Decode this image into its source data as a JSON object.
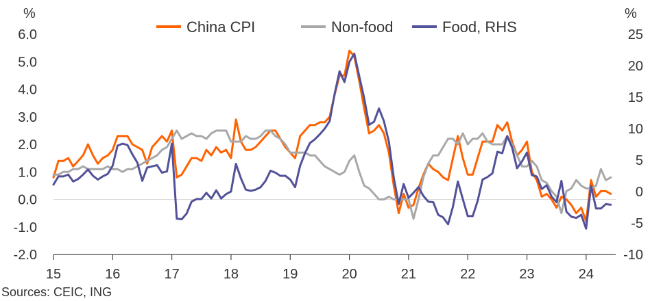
{
  "chart_data": {
    "type": "line",
    "left_axis": {
      "unit": "%",
      "ylim": [
        -2,
        6
      ],
      "ticks": [
        "6.0",
        "5.0",
        "4.0",
        "3.0",
        "2.0",
        "1.0",
        "0.0",
        "-1.0",
        "-2.0"
      ],
      "tick_values": [
        6,
        5,
        4,
        3,
        2,
        1,
        0,
        -1,
        -2
      ]
    },
    "right_axis": {
      "unit": "%",
      "ylim": [
        -10,
        25
      ],
      "ticks": [
        "25",
        "20",
        "15",
        "10",
        "5",
        "0",
        "-5",
        "-10"
      ],
      "tick_values": [
        25,
        20,
        15,
        10,
        5,
        0,
        -5,
        -10
      ]
    },
    "x_axis": {
      "ticks": [
        "15",
        "16",
        "17",
        "18",
        "19",
        "20",
        "21",
        "22",
        "23",
        "24"
      ],
      "tick_values": [
        2015,
        2016,
        2017,
        2018,
        2019,
        2020,
        2021,
        2022,
        2023,
        2024
      ],
      "xlim": [
        2015,
        2024.5
      ]
    },
    "legend_position": "top-center",
    "series": [
      {
        "name": "China CPI",
        "axis": "left",
        "color": "#FF6200",
        "x": [
          2015,
          2015.083,
          2015.167,
          2015.25,
          2015.333,
          2015.417,
          2015.5,
          2015.583,
          2015.667,
          2015.75,
          2015.833,
          2015.917,
          2016,
          2016.083,
          2016.167,
          2016.25,
          2016.333,
          2016.417,
          2016.5,
          2016.583,
          2016.667,
          2016.75,
          2016.833,
          2016.917,
          2017,
          2017.083,
          2017.167,
          2017.25,
          2017.333,
          2017.417,
          2017.5,
          2017.583,
          2017.667,
          2017.75,
          2017.833,
          2017.917,
          2018,
          2018.083,
          2018.167,
          2018.25,
          2018.333,
          2018.417,
          2018.5,
          2018.583,
          2018.667,
          2018.75,
          2018.833,
          2018.917,
          2019,
          2019.083,
          2019.167,
          2019.25,
          2019.333,
          2019.417,
          2019.5,
          2019.583,
          2019.667,
          2019.75,
          2019.833,
          2019.917,
          2020,
          2020.083,
          2020.167,
          2020.25,
          2020.333,
          2020.417,
          2020.5,
          2020.583,
          2020.667,
          2020.75,
          2020.833,
          2020.917,
          2021,
          2021.083,
          2021.167,
          2021.25,
          2021.333,
          2021.417,
          2021.5,
          2021.583,
          2021.667,
          2021.75,
          2021.833,
          2021.917,
          2022,
          2022.083,
          2022.167,
          2022.25,
          2022.333,
          2022.417,
          2022.5,
          2022.583,
          2022.667,
          2022.75,
          2022.833,
          2022.917,
          2023,
          2023.083,
          2023.167,
          2023.25,
          2023.333,
          2023.417,
          2023.5,
          2023.583,
          2023.667,
          2023.75,
          2023.833,
          2023.917,
          2024,
          2024.083,
          2024.167,
          2024.25,
          2024.333,
          2024.417
        ],
        "values": [
          0.8,
          1.4,
          1.4,
          1.5,
          1.2,
          1.4,
          1.6,
          2.0,
          1.6,
          1.3,
          1.5,
          1.6,
          1.8,
          2.3,
          2.3,
          2.3,
          2.0,
          1.9,
          1.8,
          1.3,
          1.9,
          2.1,
          2.3,
          2.1,
          2.5,
          0.8,
          0.9,
          1.2,
          1.5,
          1.5,
          1.4,
          1.8,
          1.6,
          1.9,
          1.7,
          1.8,
          1.5,
          2.9,
          2.1,
          1.8,
          1.8,
          1.9,
          2.1,
          2.3,
          2.5,
          2.5,
          2.2,
          1.9,
          1.7,
          1.5,
          2.3,
          2.5,
          2.7,
          2.7,
          2.8,
          2.8,
          3.0,
          3.8,
          4.5,
          4.5,
          5.4,
          5.2,
          4.3,
          3.3,
          2.4,
          2.5,
          2.7,
          2.4,
          1.7,
          0.5,
          -0.5,
          0.2,
          -0.3,
          -0.2,
          0.4,
          0.9,
          1.3,
          1.1,
          1.0,
          0.8,
          0.7,
          1.5,
          2.3,
          1.5,
          0.9,
          0.9,
          1.5,
          2.1,
          2.1,
          2.1,
          2.7,
          2.5,
          2.8,
          2.1,
          1.6,
          1.8,
          2.1,
          1.0,
          0.7,
          0.1,
          0.2,
          0.0,
          -0.3,
          0.1,
          0.0,
          -0.2,
          -0.5,
          -0.3,
          -0.8,
          0.7,
          0.1,
          0.3,
          0.3,
          0.2
        ],
        "values_visible_note": ""
      },
      {
        "name": "Non-food",
        "axis": "left",
        "color": "#A8A8A8",
        "x": [
          2015,
          2015.083,
          2015.167,
          2015.25,
          2015.333,
          2015.417,
          2015.5,
          2015.583,
          2015.667,
          2015.75,
          2015.833,
          2015.917,
          2016,
          2016.083,
          2016.167,
          2016.25,
          2016.333,
          2016.417,
          2016.5,
          2016.583,
          2016.667,
          2016.75,
          2016.833,
          2016.917,
          2017,
          2017.083,
          2017.167,
          2017.25,
          2017.333,
          2017.417,
          2017.5,
          2017.583,
          2017.667,
          2017.75,
          2017.833,
          2017.917,
          2018,
          2018.083,
          2018.167,
          2018.25,
          2018.333,
          2018.417,
          2018.5,
          2018.583,
          2018.667,
          2018.75,
          2018.833,
          2018.917,
          2019,
          2019.083,
          2019.167,
          2019.25,
          2019.333,
          2019.417,
          2019.5,
          2019.583,
          2019.667,
          2019.75,
          2019.833,
          2019.917,
          2020,
          2020.083,
          2020.167,
          2020.25,
          2020.333,
          2020.417,
          2020.5,
          2020.583,
          2020.667,
          2020.75,
          2020.833,
          2020.917,
          2021,
          2021.083,
          2021.167,
          2021.25,
          2021.333,
          2021.417,
          2021.5,
          2021.583,
          2021.667,
          2021.75,
          2021.833,
          2021.917,
          2022,
          2022.083,
          2022.167,
          2022.25,
          2022.333,
          2022.417,
          2022.5,
          2022.583,
          2022.667,
          2022.75,
          2022.833,
          2022.917,
          2023,
          2023.083,
          2023.167,
          2023.25,
          2023.333,
          2023.417,
          2023.5,
          2023.583,
          2023.667,
          2023.75,
          2023.833,
          2023.917,
          2024,
          2024.083,
          2024.167,
          2024.25,
          2024.333,
          2024.417
        ],
        "values": [
          0.9,
          0.9,
          1.0,
          1.0,
          1.1,
          1.1,
          1.2,
          1.1,
          1.1,
          1.1,
          1.1,
          1.2,
          1.1,
          1.1,
          1.0,
          1.1,
          1.1,
          1.2,
          1.3,
          1.4,
          1.5,
          1.6,
          1.8,
          1.9,
          2.2,
          2.5,
          2.2,
          2.3,
          2.4,
          2.3,
          2.3,
          2.2,
          2.4,
          2.5,
          2.5,
          2.5,
          2.1,
          2.1,
          2.1,
          2.3,
          2.2,
          2.2,
          2.3,
          2.5,
          2.5,
          2.3,
          2.2,
          2.0,
          1.7,
          1.7,
          1.7,
          1.7,
          1.6,
          1.6,
          1.4,
          1.2,
          1.1,
          1.0,
          0.9,
          1.0,
          1.4,
          1.6,
          1.0,
          0.5,
          0.4,
          0.2,
          0.0,
          0.0,
          0.1,
          0.0,
          0.0,
          0.0,
          0.0,
          -0.7,
          0.0,
          0.8,
          1.3,
          1.6,
          1.6,
          1.9,
          2.2,
          2.2,
          2.0,
          2.4,
          2.0,
          2.2,
          2.2,
          2.4,
          2.1,
          2.0,
          2.0,
          2.0,
          2.3,
          2.0,
          1.6,
          1.2,
          1.2,
          1.4,
          1.2,
          0.7,
          0.6,
          0.3,
          0.1,
          -0.5,
          0.3,
          0.4,
          0.7,
          0.5,
          0.4,
          0.4,
          0.5,
          1.1,
          0.7,
          0.8
        ],
        "values_visible_note": ""
      },
      {
        "name": "Food, RHS",
        "axis": "right",
        "color": "#525199",
        "x": [
          2015,
          2015.083,
          2015.167,
          2015.25,
          2015.333,
          2015.417,
          2015.5,
          2015.583,
          2015.667,
          2015.75,
          2015.833,
          2015.917,
          2016,
          2016.083,
          2016.167,
          2016.25,
          2016.333,
          2016.417,
          2016.5,
          2016.583,
          2016.667,
          2016.75,
          2016.833,
          2016.917,
          2017,
          2017.083,
          2017.167,
          2017.25,
          2017.333,
          2017.417,
          2017.5,
          2017.583,
          2017.667,
          2017.75,
          2017.833,
          2017.917,
          2018,
          2018.083,
          2018.167,
          2018.25,
          2018.333,
          2018.417,
          2018.5,
          2018.583,
          2018.667,
          2018.75,
          2018.833,
          2018.917,
          2019,
          2019.083,
          2019.167,
          2019.25,
          2019.333,
          2019.417,
          2019.5,
          2019.583,
          2019.667,
          2019.75,
          2019.833,
          2019.917,
          2020,
          2020.083,
          2020.167,
          2020.25,
          2020.333,
          2020.417,
          2020.5,
          2020.583,
          2020.667,
          2020.75,
          2020.833,
          2020.917,
          2021,
          2021.083,
          2021.167,
          2021.25,
          2021.333,
          2021.417,
          2021.5,
          2021.583,
          2021.667,
          2021.75,
          2021.833,
          2021.917,
          2022,
          2022.083,
          2022.167,
          2022.25,
          2022.333,
          2022.417,
          2022.5,
          2022.583,
          2022.667,
          2022.75,
          2022.833,
          2022.917,
          2023,
          2023.083,
          2023.167,
          2023.25,
          2023.333,
          2023.417,
          2023.5,
          2023.583,
          2023.667,
          2023.75,
          2023.833,
          2023.917,
          2024,
          2024.083,
          2024.167,
          2024.25,
          2024.333,
          2024.417
        ],
        "values": [
          1.1,
          2.4,
          2.4,
          2.7,
          1.6,
          2.0,
          2.7,
          3.5,
          2.5,
          1.9,
          2.4,
          2.8,
          4.1,
          7.3,
          7.6,
          7.4,
          5.9,
          4.6,
          1.7,
          3.8,
          4.0,
          4.2,
          3.0,
          3.2,
          7.6,
          -4.3,
          -4.4,
          -3.5,
          -1.6,
          -1.2,
          -1.2,
          -0.2,
          -1.1,
          0.2,
          -1.1,
          -0.4,
          0.0,
          4.4,
          2.1,
          0.3,
          0.1,
          0.3,
          0.7,
          1.7,
          3.3,
          3.0,
          2.5,
          2.5,
          1.9,
          0.7,
          4.1,
          6.1,
          7.7,
          8.3,
          9.1,
          10.0,
          11.2,
          15.5,
          19.1,
          17.4,
          20.6,
          21.9,
          18.3,
          14.8,
          10.6,
          11.1,
          13.2,
          11.2,
          7.9,
          2.2,
          -2.0,
          1.2,
          -1.0,
          -0.2,
          0.7,
          -0.7,
          -1.6,
          -1.7,
          -3.7,
          -4.1,
          -5.2,
          -2.4,
          1.6,
          -1.2,
          -3.9,
          -3.9,
          -1.5,
          1.9,
          2.3,
          2.9,
          6.3,
          6.1,
          8.8,
          7.0,
          3.7,
          4.8,
          6.2,
          2.6,
          2.4,
          0.4,
          1.0,
          -0.8,
          -1.7,
          1.7,
          -3.2,
          -4.0,
          -4.2,
          -3.7,
          -5.9,
          0.9,
          -2.7,
          -2.7,
          -2.0,
          -2.1
        ],
        "values_visible_note": ""
      }
    ],
    "source": "Sources: CEIC, ING"
  }
}
